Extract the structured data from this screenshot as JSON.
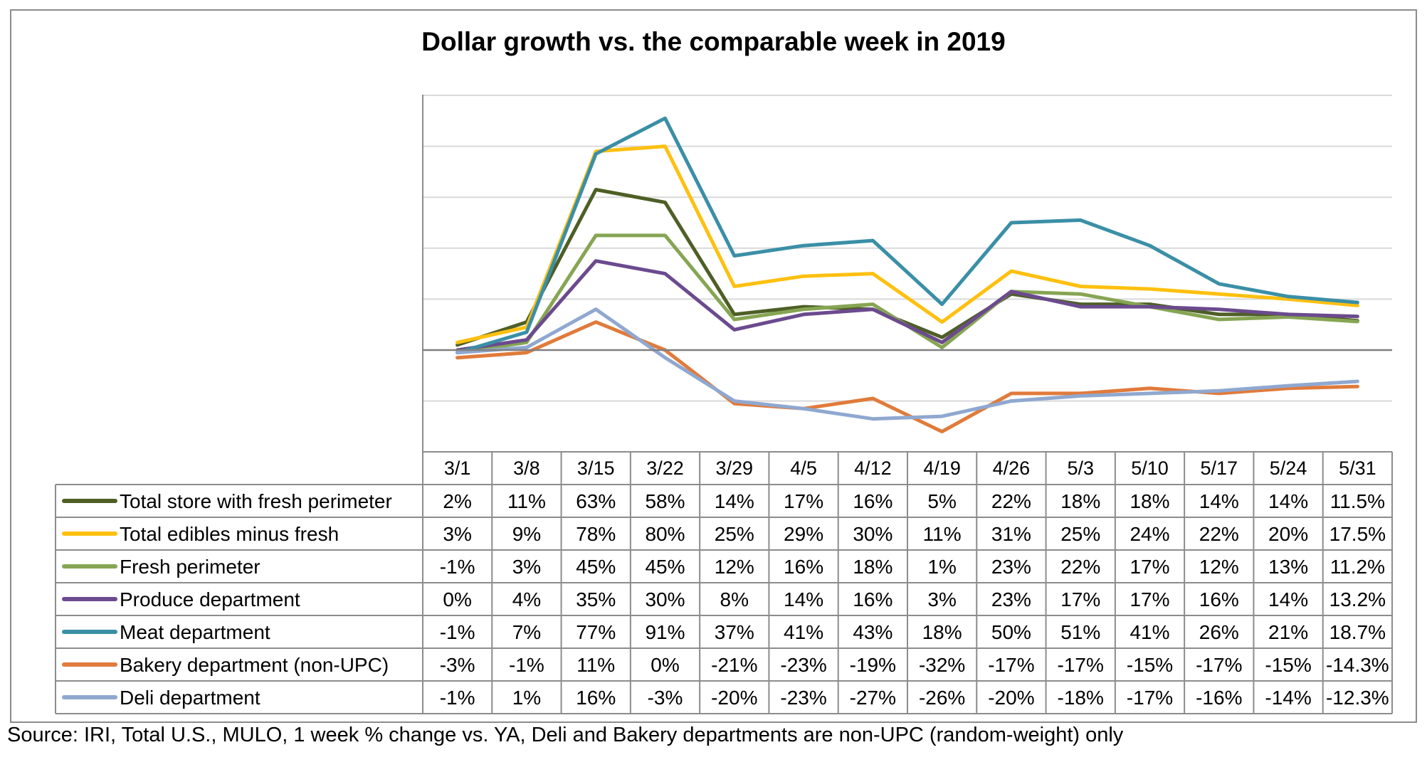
{
  "title": "Dollar growth vs. the comparable week in 2019",
  "source": "Source: IRI, Total U.S., MULO, 1 week % change vs. YA, Deli and Bakery departments are non-UPC (random-weight) only",
  "chart_data": {
    "type": "line",
    "title": "Dollar growth vs. the comparable week in 2019",
    "xlabel": "",
    "ylabel": "",
    "ylim": [
      -0.4,
      1.0
    ],
    "yticks": [
      -0.2,
      0.0,
      0.2,
      0.4,
      0.6,
      0.8,
      1.0
    ],
    "grid": true,
    "legend": "data-table",
    "categories": [
      "3/1",
      "3/8",
      "3/15",
      "3/22",
      "3/29",
      "4/5",
      "4/12",
      "4/19",
      "4/26",
      "5/3",
      "5/10",
      "5/17",
      "5/24",
      "5/31"
    ],
    "series": [
      {
        "name": "Total store with fresh perimeter",
        "color": "#4e5f26",
        "values": [
          0.02,
          0.11,
          0.63,
          0.58,
          0.14,
          0.17,
          0.16,
          0.05,
          0.22,
          0.18,
          0.18,
          0.14,
          0.14,
          0.115
        ],
        "labels": [
          "2%",
          "11%",
          "63%",
          "58%",
          "14%",
          "17%",
          "16%",
          "5%",
          "22%",
          "18%",
          "18%",
          "14%",
          "14%",
          "11.5%"
        ]
      },
      {
        "name": "Total edibles minus fresh",
        "color": "#fec010",
        "values": [
          0.03,
          0.09,
          0.78,
          0.8,
          0.25,
          0.29,
          0.3,
          0.11,
          0.31,
          0.25,
          0.24,
          0.22,
          0.2,
          0.175
        ],
        "labels": [
          "3%",
          "9%",
          "78%",
          "80%",
          "25%",
          "29%",
          "30%",
          "11%",
          "31%",
          "25%",
          "24%",
          "22%",
          "20%",
          "17.5%"
        ]
      },
      {
        "name": "Fresh perimeter",
        "color": "#86a553",
        "values": [
          -0.01,
          0.03,
          0.45,
          0.45,
          0.12,
          0.16,
          0.18,
          0.01,
          0.23,
          0.22,
          0.17,
          0.12,
          0.13,
          0.112
        ],
        "labels": [
          "-1%",
          "3%",
          "45%",
          "45%",
          "12%",
          "16%",
          "18%",
          "1%",
          "23%",
          "22%",
          "17%",
          "12%",
          "13%",
          "11.2%"
        ]
      },
      {
        "name": "Produce department",
        "color": "#6b4a8e",
        "values": [
          0.0,
          0.04,
          0.35,
          0.3,
          0.08,
          0.14,
          0.16,
          0.03,
          0.23,
          0.17,
          0.17,
          0.16,
          0.14,
          0.132
        ],
        "labels": [
          "0%",
          "4%",
          "35%",
          "30%",
          "8%",
          "14%",
          "16%",
          "3%",
          "23%",
          "17%",
          "17%",
          "16%",
          "14%",
          "13.2%"
        ]
      },
      {
        "name": "Meat department",
        "color": "#3a8fa6",
        "values": [
          -0.01,
          0.07,
          0.77,
          0.91,
          0.37,
          0.41,
          0.43,
          0.18,
          0.5,
          0.51,
          0.41,
          0.26,
          0.21,
          0.187
        ],
        "labels": [
          "-1%",
          "7%",
          "77%",
          "91%",
          "37%",
          "41%",
          "43%",
          "18%",
          "50%",
          "51%",
          "41%",
          "26%",
          "21%",
          "18.7%"
        ]
      },
      {
        "name": "Bakery department (non-UPC)",
        "color": "#e07b3b",
        "values": [
          -0.03,
          -0.01,
          0.11,
          0.0,
          -0.21,
          -0.23,
          -0.19,
          -0.32,
          -0.17,
          -0.17,
          -0.15,
          -0.17,
          -0.15,
          -0.143
        ],
        "labels": [
          "-3%",
          "-1%",
          "11%",
          "0%",
          "-21%",
          "-23%",
          "-19%",
          "-32%",
          "-17%",
          "-17%",
          "-15%",
          "-17%",
          "-15%",
          "-14.3%"
        ]
      },
      {
        "name": "Deli department",
        "color": "#8fa8d0",
        "values": [
          -0.01,
          0.01,
          0.16,
          -0.03,
          -0.2,
          -0.23,
          -0.27,
          -0.26,
          -0.2,
          -0.18,
          -0.17,
          -0.16,
          -0.14,
          -0.123
        ],
        "labels": [
          "-1%",
          "1%",
          "16%",
          "-3%",
          "-20%",
          "-23%",
          "-27%",
          "-26%",
          "-20%",
          "-18%",
          "-17%",
          "-16%",
          "-14%",
          "-12.3%"
        ]
      }
    ]
  }
}
